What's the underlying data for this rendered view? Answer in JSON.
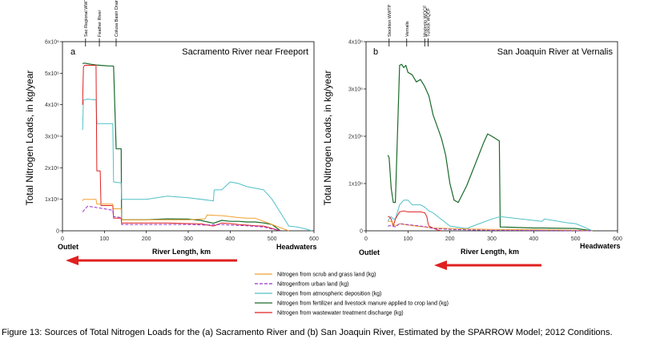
{
  "caption": "Figure 13: Sources of Total Nitrogen Loads for the (a) Sacramento River and (b) San Joaquin River, Estimated by the SPARROW Model; 2012 Conditions.",
  "ylabel": "Total Nitrogen Loads, in kg/year",
  "xlabel": "River Length, km",
  "outlet_label": "Outlet",
  "headwaters_label": "Headwaters",
  "colors": {
    "scrub": "#f0a030",
    "urban": "#9b30c8",
    "atmos": "#50c0c8",
    "fert": "#1a6a2a",
    "wwtp": "#e02020",
    "arrow": "#e02020"
  },
  "legend": [
    {
      "key": "scrub",
      "label": "Nitrogen from scrub and grass land (kg)",
      "dashed": false
    },
    {
      "key": "urban",
      "label": "Nitrogenfrom urban land (kg)",
      "dashed": true
    },
    {
      "key": "atmos",
      "label": "Nitrogen from atmospheric deposition (kg)",
      "dashed": false
    },
    {
      "key": "fert",
      "label": "Nitrogen from fertilizer and livestock manure applied to crop land (kg)",
      "dashed": false
    },
    {
      "key": "wwtp",
      "label": "Nitrogen from wastewater treatment discharge (kg)",
      "dashed": false
    }
  ],
  "chart_data": [
    {
      "type": "line",
      "letter": "a",
      "title": "Sacramento River near Freeport",
      "xlim": [
        0,
        600
      ],
      "ylim": [
        0,
        6000000
      ],
      "xticks": [
        0,
        100,
        200,
        300,
        400,
        500,
        600
      ],
      "yticks": [
        {
          "v": 0,
          "label": "0"
        },
        {
          "v": 1000000,
          "label": "1x10⁶"
        },
        {
          "v": 2000000,
          "label": "2x10⁶"
        },
        {
          "v": 3000000,
          "label": "3x10⁶"
        },
        {
          "v": 4000000,
          "label": "4x10⁶"
        },
        {
          "v": 5000000,
          "label": "5x10⁶"
        },
        {
          "v": 6000000,
          "label": "6x10⁶"
        }
      ],
      "landmarks": [
        {
          "x": 55,
          "label": "Sac Regional WWTP & Freeport"
        },
        {
          "x": 88,
          "label": "Feather River"
        },
        {
          "x": 128,
          "label": "Colusa Basin Drain"
        }
      ],
      "series": [
        {
          "key": "fert",
          "x": [
            48,
            52,
            60,
            70,
            80,
            90,
            100,
            110,
            120,
            122,
            128,
            140,
            141,
            150,
            200,
            250,
            300,
            330,
            360,
            380,
            400,
            420,
            440,
            460,
            480,
            500,
            520
          ],
          "y": [
            5300000,
            5320000,
            5300000,
            5280000,
            5260000,
            5250000,
            5240000,
            5230000,
            5230000,
            5220000,
            2600000,
            2600000,
            350000,
            350000,
            350000,
            380000,
            370000,
            330000,
            240000,
            330000,
            300000,
            300000,
            280000,
            280000,
            250000,
            200000,
            0
          ]
        },
        {
          "key": "atmos",
          "x": [
            48,
            50,
            60,
            80,
            82,
            120,
            122,
            140,
            141,
            200,
            250,
            300,
            360,
            362,
            380,
            400,
            420,
            440,
            460,
            480,
            500,
            540,
            560,
            580,
            595
          ],
          "y": [
            3200000,
            4150000,
            4180000,
            4150000,
            3400000,
            3400000,
            1550000,
            1520000,
            1000000,
            1000000,
            1100000,
            1050000,
            950000,
            1300000,
            1300000,
            1550000,
            1500000,
            1400000,
            1350000,
            1300000,
            1000000,
            150000,
            120000,
            60000,
            0
          ]
        },
        {
          "key": "wwtp",
          "x": [
            48,
            50,
            53,
            80,
            82,
            90,
            92,
            120,
            122,
            140,
            141,
            200,
            250,
            300,
            330,
            360,
            380,
            400,
            420,
            440,
            460,
            480,
            520
          ],
          "y": [
            4000000,
            5200000,
            5250000,
            5250000,
            1900000,
            1900000,
            800000,
            800000,
            400000,
            400000,
            250000,
            250000,
            250000,
            230000,
            220000,
            150000,
            250000,
            230000,
            200000,
            180000,
            160000,
            150000,
            0
          ]
        },
        {
          "key": "scrub",
          "x": [
            48,
            50,
            60,
            80,
            82,
            120,
            122,
            140,
            141,
            200,
            250,
            300,
            340,
            345,
            380,
            400,
            420,
            440,
            460,
            500,
            540
          ],
          "y": [
            950000,
            1000000,
            1000000,
            1000000,
            850000,
            850000,
            700000,
            700000,
            350000,
            350000,
            350000,
            350000,
            380000,
            500000,
            480000,
            450000,
            420000,
            400000,
            400000,
            200000,
            0
          ]
        },
        {
          "key": "urban",
          "x": [
            48,
            60,
            80,
            100,
            120,
            122,
            140,
            141,
            200,
            250,
            300,
            340,
            380,
            400,
            440,
            480,
            520
          ],
          "y": [
            600000,
            780000,
            740000,
            700000,
            650000,
            450000,
            420000,
            200000,
            200000,
            200000,
            200000,
            180000,
            200000,
            180000,
            160000,
            120000,
            0
          ]
        }
      ]
    },
    {
      "type": "line",
      "letter": "b",
      "title": "San Joaquin River at Vernalis",
      "xlim": [
        0,
        600
      ],
      "ylim": [
        0,
        4000000
      ],
      "xticks": [
        0,
        100,
        200,
        300,
        400,
        500,
        600
      ],
      "yticks": [
        {
          "v": 0,
          "label": "0"
        },
        {
          "v": 1000000,
          "label": "1x10⁶"
        },
        {
          "v": 2000000,
          "label": "2x10⁶"
        },
        {
          "v": 3000000,
          "label": "3x10⁶"
        },
        {
          "v": 4000000,
          "label": "4x10⁶"
        }
      ],
      "landmarks": [
        {
          "x": 55,
          "label": "Stockton WWTP"
        },
        {
          "x": 97,
          "label": "Vernalis"
        },
        {
          "x": 140,
          "label": "Modesto WQCF"
        },
        {
          "x": 148,
          "label": "Turlock WQCF"
        }
      ],
      "series": [
        {
          "key": "fert",
          "x": [
            52,
            55,
            60,
            65,
            70,
            80,
            85,
            90,
            95,
            100,
            110,
            120,
            130,
            140,
            150,
            160,
            170,
            180,
            190,
            200,
            210,
            220,
            240,
            260,
            280,
            290,
            300,
            318,
            320,
            330,
            400,
            420,
            500,
            540
          ],
          "y": [
            1600000,
            1550000,
            900000,
            600000,
            600000,
            3500000,
            3520000,
            3450000,
            3500000,
            3350000,
            3300000,
            3150000,
            3200000,
            3050000,
            2850000,
            2450000,
            2200000,
            1950000,
            1600000,
            1000000,
            650000,
            600000,
            950000,
            1400000,
            1850000,
            2050000,
            2000000,
            1900000,
            80000,
            80000,
            60000,
            60000,
            50000,
            0
          ]
        },
        {
          "key": "atmos",
          "x": [
            52,
            55,
            60,
            65,
            70,
            80,
            90,
            100,
            110,
            130,
            140,
            150,
            160,
            200,
            240,
            270,
            300,
            320,
            420,
            425,
            460,
            480,
            500,
            520,
            540
          ],
          "y": [
            200000,
            250000,
            300000,
            250000,
            250000,
            550000,
            650000,
            650000,
            550000,
            550000,
            500000,
            420000,
            380000,
            100000,
            50000,
            150000,
            250000,
            300000,
            200000,
            250000,
            200000,
            170000,
            150000,
            80000,
            0
          ]
        },
        {
          "key": "wwtp",
          "x": [
            52,
            55,
            60,
            65,
            70,
            80,
            90,
            100,
            110,
            130,
            140,
            145,
            148,
            150,
            160,
            170,
            180
          ],
          "y": [
            300000,
            300000,
            250000,
            100000,
            250000,
            400000,
            420000,
            400000,
            400000,
            400000,
            380000,
            300000,
            150000,
            100000,
            60000,
            20000,
            0
          ]
        },
        {
          "key": "scrub",
          "x": [
            52,
            60,
            70,
            80,
            100,
            120,
            140,
            160,
            200,
            240,
            300,
            320,
            420,
            500,
            540
          ],
          "y": [
            200000,
            200000,
            100000,
            150000,
            120000,
            100000,
            80000,
            60000,
            50000,
            40000,
            30000,
            30000,
            20000,
            10000,
            0
          ]
        },
        {
          "key": "urban",
          "x": [
            52,
            60,
            70,
            80,
            100,
            120,
            140,
            160,
            200,
            240,
            300,
            320,
            420,
            540
          ],
          "y": [
            100000,
            110000,
            80000,
            150000,
            130000,
            110000,
            90000,
            50000,
            30000,
            20000,
            10000,
            10000,
            5000,
            0
          ]
        }
      ]
    }
  ]
}
